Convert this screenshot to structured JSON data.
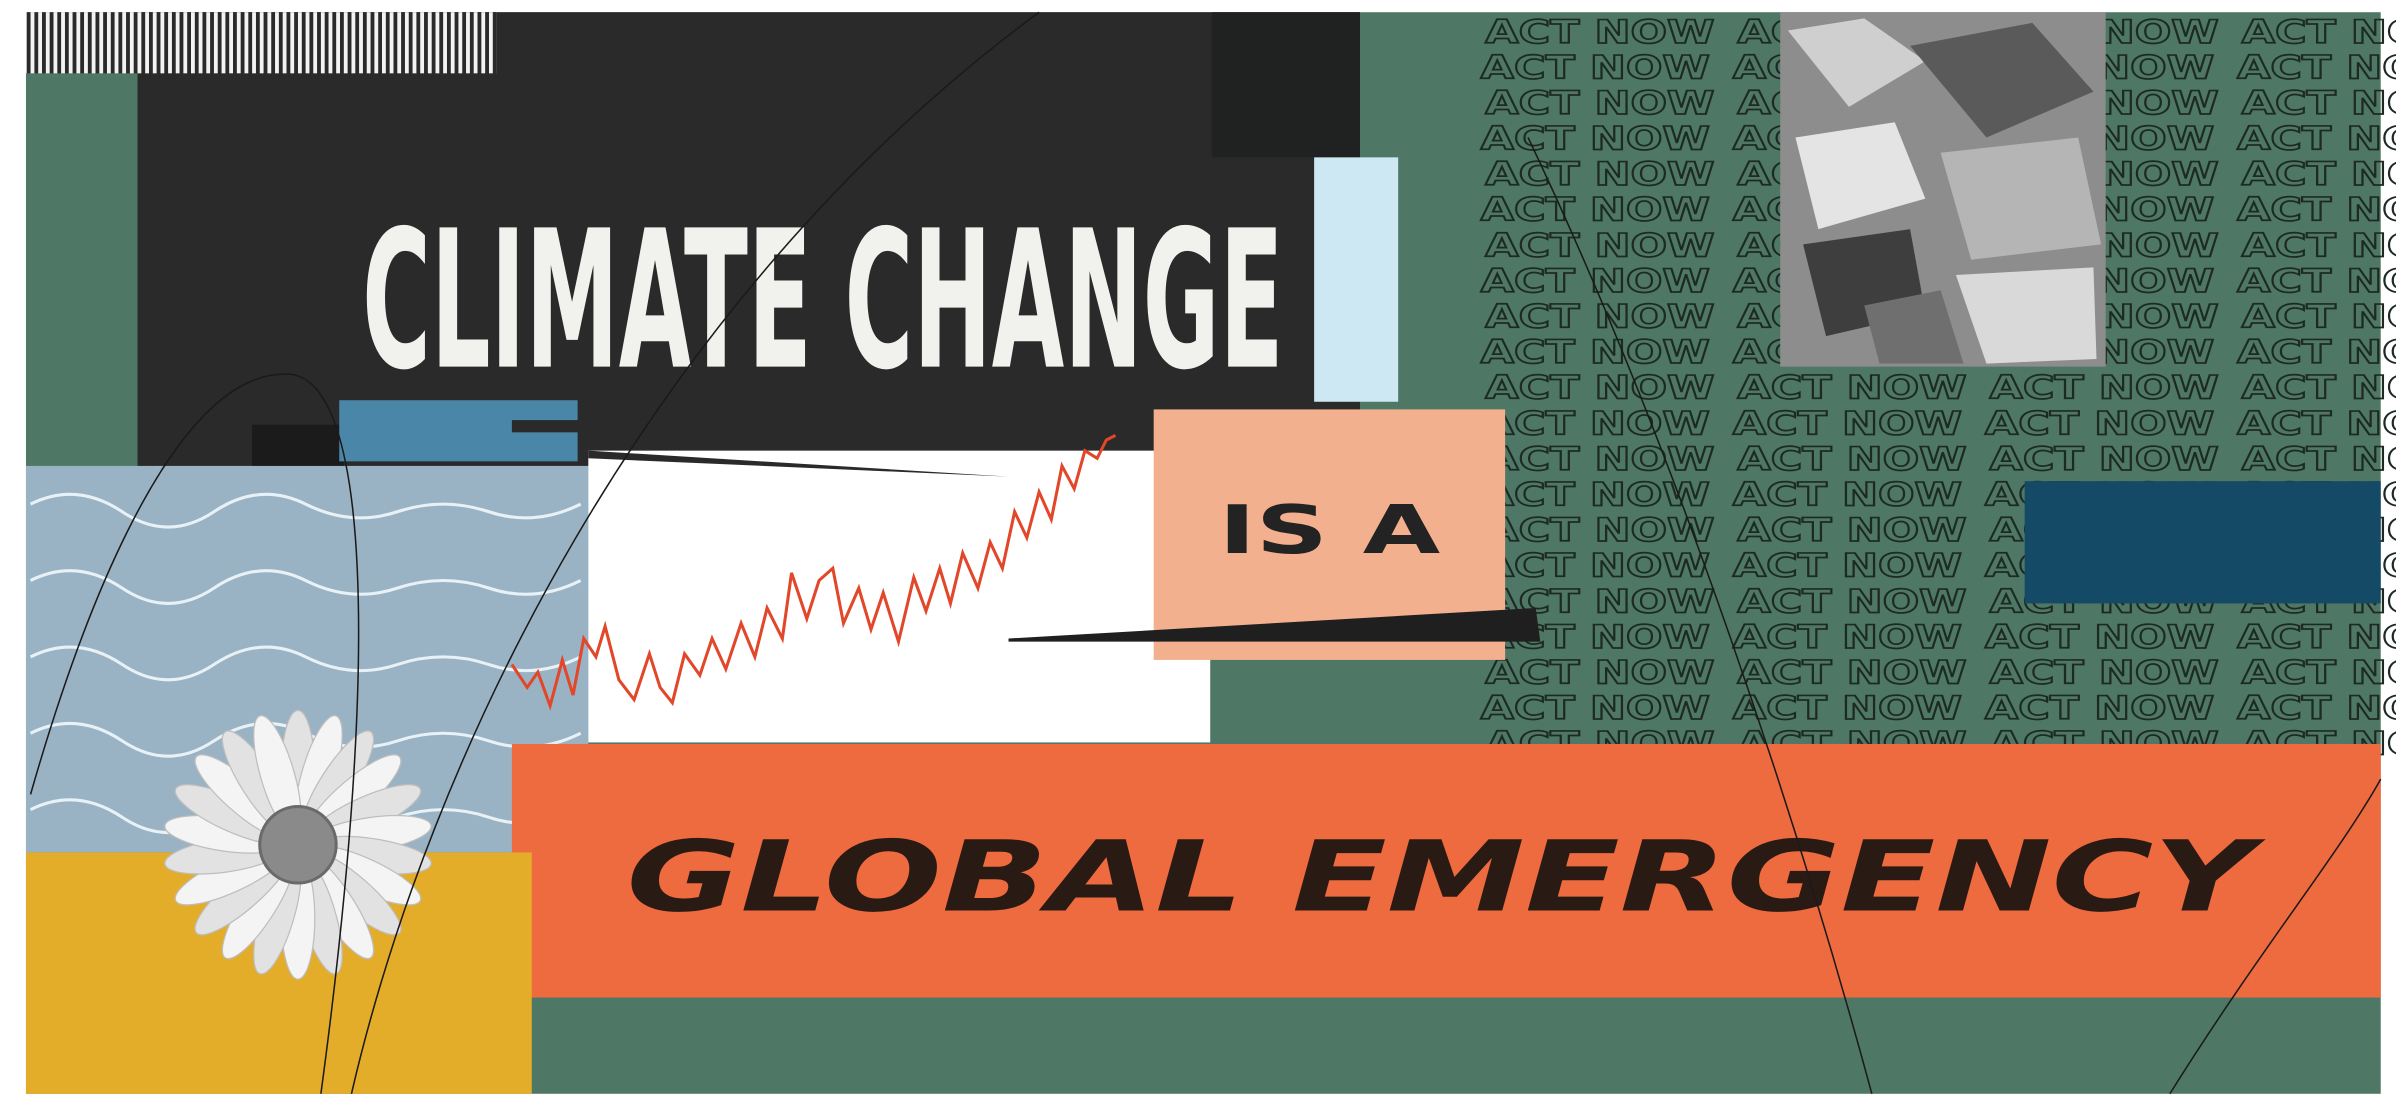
{
  "poster": {
    "title": "CLIMATE CHANGE",
    "connector": "IS A",
    "headline": "GLOBAL EMERGENCY",
    "pattern_text": "ACT NOW"
  }
}
